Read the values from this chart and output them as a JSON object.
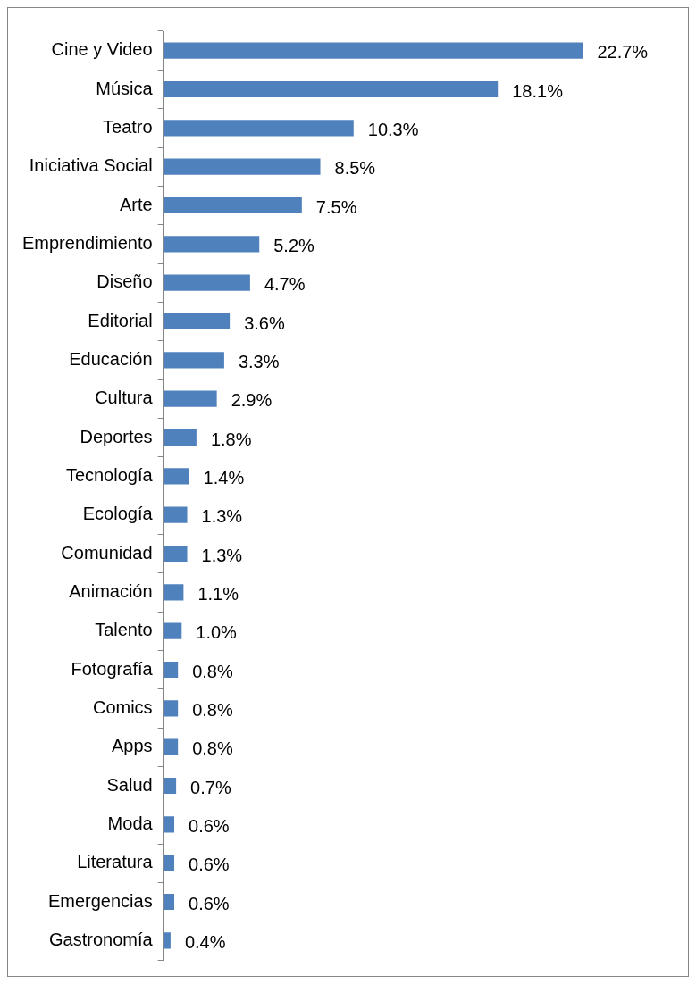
{
  "chart_data": {
    "type": "bar",
    "orientation": "horizontal",
    "categories": [
      "Cine y Video",
      "Música",
      "Teatro",
      "Iniciativa Social",
      "Arte",
      "Emprendimiento",
      "Diseño",
      "Editorial",
      "Educación",
      "Cultura",
      "Deportes",
      "Tecnología",
      "Ecología",
      "Comunidad",
      "Animación",
      "Talento",
      "Fotografía",
      "Comics",
      "Apps",
      "Salud",
      "Moda",
      "Literatura",
      "Emergencias",
      "Gastronomía"
    ],
    "values": [
      22.7,
      18.1,
      10.3,
      8.5,
      7.5,
      5.2,
      4.7,
      3.6,
      3.3,
      2.9,
      1.8,
      1.4,
      1.3,
      1.3,
      1.1,
      1.0,
      0.8,
      0.8,
      0.8,
      0.7,
      0.6,
      0.6,
      0.6,
      0.4
    ],
    "value_labels": [
      "22.7%",
      "18.1%",
      "10.3%",
      "8.5%",
      "7.5%",
      "5.2%",
      "4.7%",
      "3.6%",
      "3.3%",
      "2.9%",
      "1.8%",
      "1.4%",
      "1.3%",
      "1.3%",
      "1.1%",
      "1.0%",
      "0.8%",
      "0.8%",
      "0.8%",
      "0.7%",
      "0.6%",
      "0.6%",
      "0.6%",
      "0.4%"
    ],
    "color": "#4f81bd",
    "tick_labels": "y",
    "legend": false
  }
}
